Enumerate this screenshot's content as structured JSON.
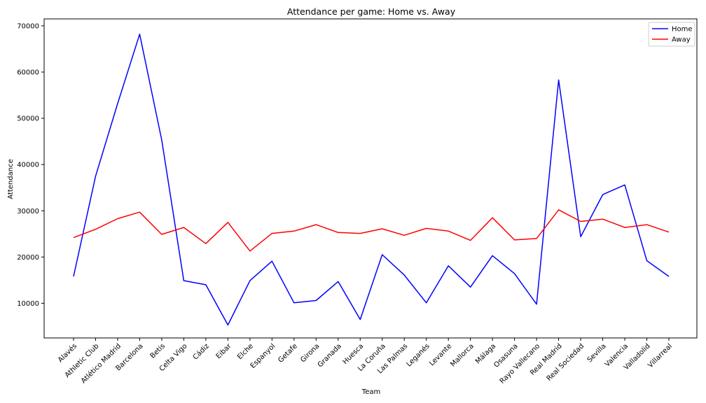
{
  "chart_data": {
    "type": "line",
    "title": "Attendance per game: Home vs. Away",
    "xlabel": "Team",
    "ylabel": "Attendance",
    "ylim": [
      2500,
      71500
    ],
    "yticks": [
      10000,
      20000,
      30000,
      40000,
      50000,
      60000,
      70000
    ],
    "grid": false,
    "legend": "top-right",
    "categories": [
      "Alavés",
      "Athletic Club",
      "Atlético Madrid",
      "Barcelona",
      "Betis",
      "Celta Vigo",
      "Cádiz",
      "Eibar",
      "Elche",
      "Espanyol",
      "Getafe",
      "Girona",
      "Granada",
      "Huesca",
      "La Coruña",
      "Las Palmas",
      "Leganés",
      "Levante",
      "Mallorca",
      "Málaga",
      "Osasuna",
      "Rayo Vallecano",
      "Real Madrid",
      "Real Sociedad",
      "Sevilla",
      "Valencia",
      "Valladolid",
      "Villarreal"
    ],
    "series": [
      {
        "name": "Home",
        "color": "#0000ff",
        "values": [
          15800,
          37500,
          53200,
          68200,
          45300,
          14900,
          14000,
          5300,
          14900,
          19100,
          10100,
          10600,
          14700,
          6500,
          20500,
          16100,
          10100,
          18100,
          13500,
          20300,
          16400,
          9800,
          58300,
          24400,
          33500,
          35600,
          19200,
          15800
        ]
      },
      {
        "name": "Away",
        "color": "#ff0000",
        "values": [
          24200,
          26000,
          28300,
          29700,
          24900,
          26400,
          22900,
          27500,
          21300,
          25100,
          25600,
          27000,
          25300,
          25100,
          26100,
          24700,
          26200,
          25600,
          23600,
          28500,
          23700,
          24000,
          30200,
          27700,
          28200,
          26400,
          27000,
          25400
        ]
      }
    ]
  }
}
